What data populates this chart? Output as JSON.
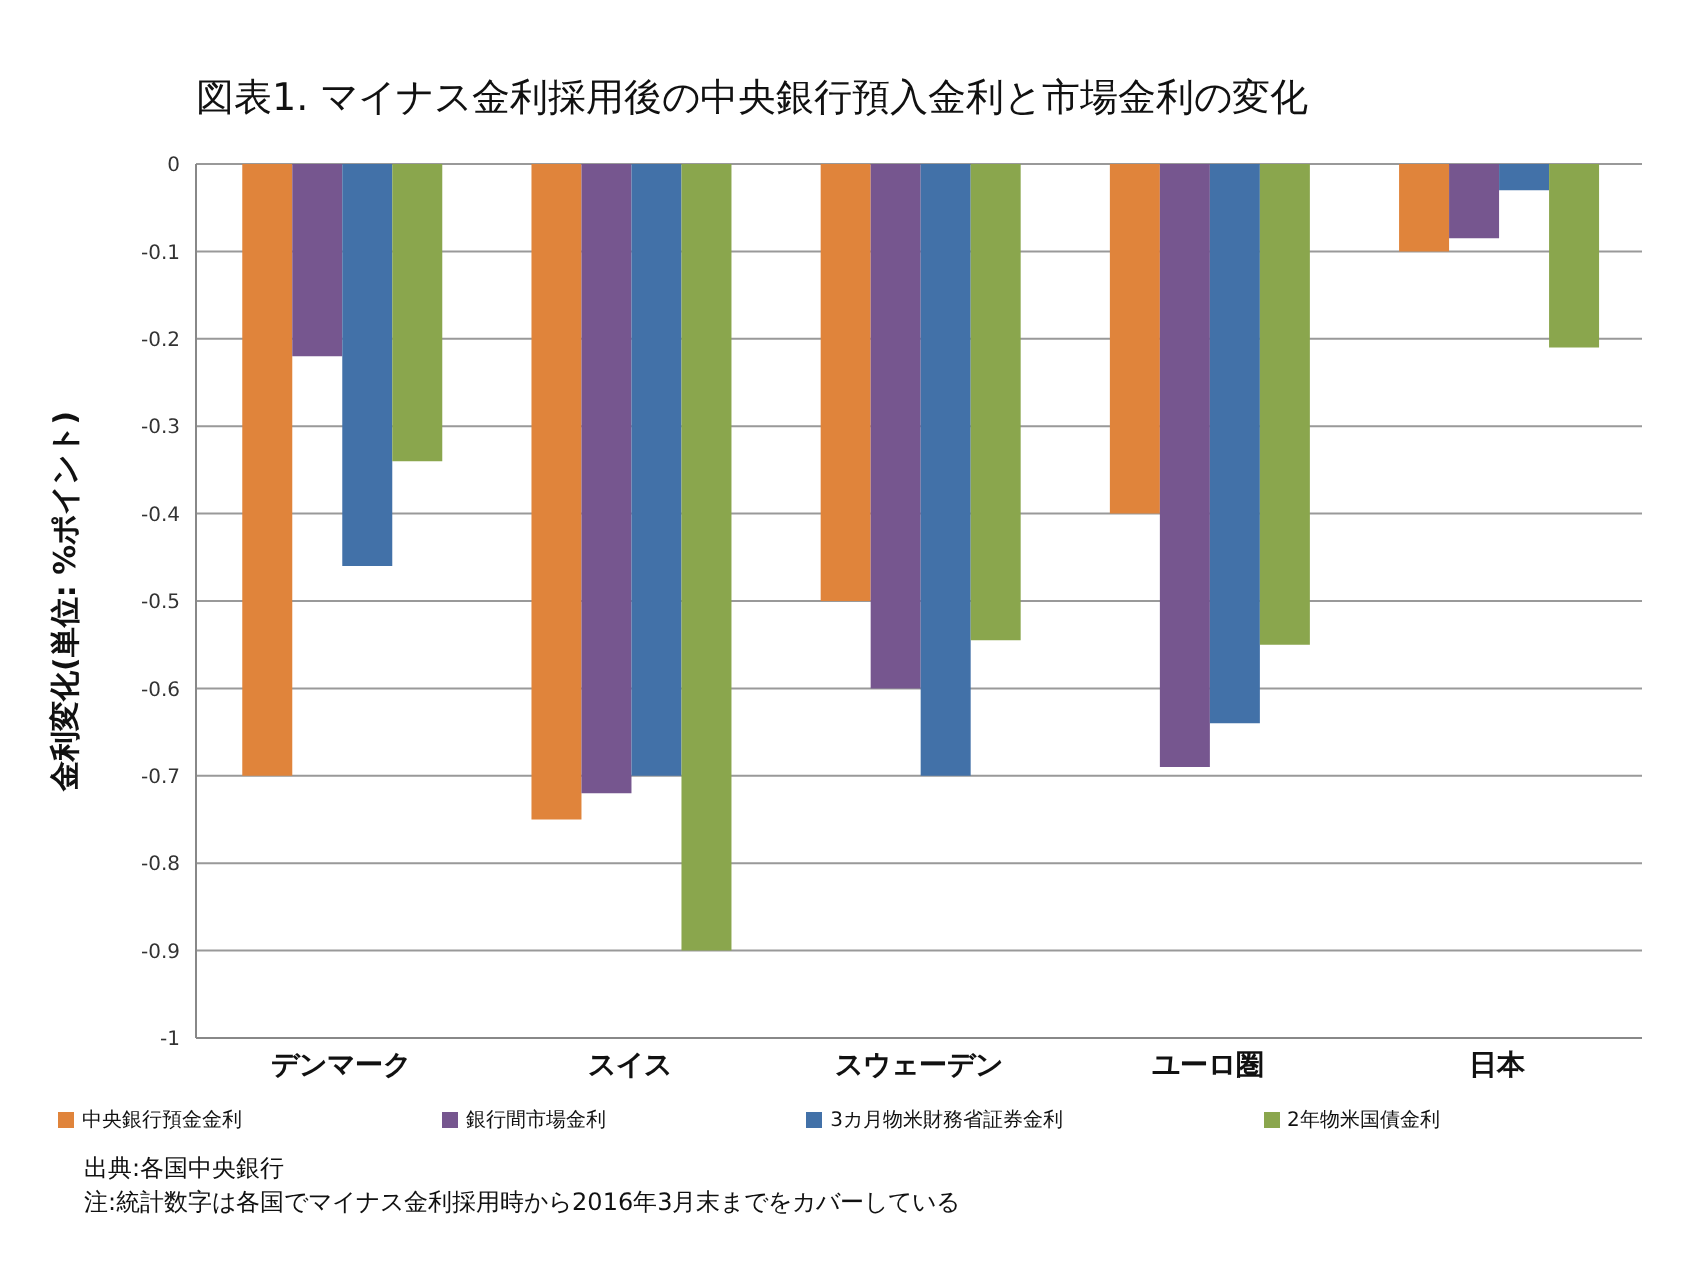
{
  "chart_data": {
    "type": "bar",
    "title": "図表1. マイナス金利採用後の中央銀行預入金利と市場金利の変化",
    "ylabel": "金利変化(単位: %ポイント)",
    "categories": [
      "デンマーク",
      "スイス",
      "スウェーデン",
      "ユーロ圏",
      "日本"
    ],
    "series": [
      {
        "name": "中央銀行預金金利",
        "color": "#e0843b",
        "values": [
          -0.7,
          -0.75,
          -0.5,
          -0.4,
          -0.1
        ]
      },
      {
        "name": "銀行間市場金利",
        "color": "#76568f",
        "values": [
          -0.22,
          -0.72,
          -0.6,
          -0.69,
          -0.085
        ]
      },
      {
        "name": "3カ月物米財務省証券金利",
        "color": "#4271a8",
        "values": [
          -0.46,
          -0.7,
          -0.7,
          -0.64,
          -0.03
        ]
      },
      {
        "name": "2年物米国債金利",
        "color": "#8aa64d",
        "values": [
          -0.34,
          -0.9,
          -0.545,
          -0.55,
          -0.21
        ]
      }
    ],
    "ylim": [
      -1,
      0
    ],
    "yticks": [
      0,
      -0.1,
      -0.2,
      -0.3,
      -0.4,
      -0.5,
      -0.6,
      -0.7,
      -0.8,
      -0.9,
      -1
    ],
    "grid": "y",
    "legend": "bottom",
    "annotations": [
      "出典:各国中央銀行",
      "注:統計数字は各国でマイナス金利採用時から2016年3月末までをカバーしている"
    ]
  }
}
